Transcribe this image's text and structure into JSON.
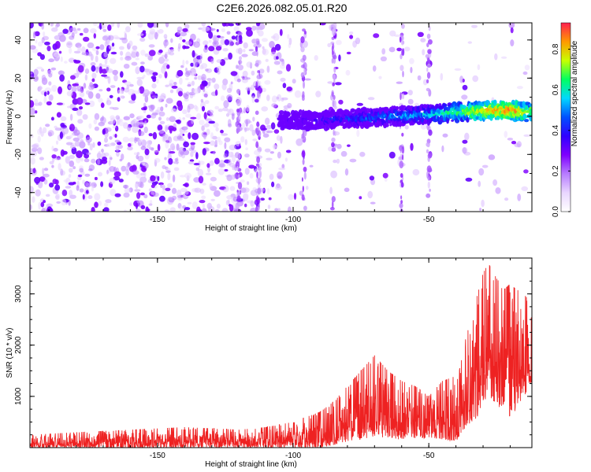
{
  "title": "C2E6.2026.082.05.01.R20",
  "colors": {
    "axis": "#000000",
    "snr_line": "#ee2222",
    "spectrogram_bg": "#ffffff",
    "colormap": [
      "#ffffff",
      "#e9d6ff",
      "#b77cff",
      "#7f00ff",
      "#3000ff",
      "#0050ff",
      "#00d8ff",
      "#00ff60",
      "#c8ff00",
      "#ff9900",
      "#ff1f4f"
    ]
  },
  "chart_data": [
    {
      "type": "heatmap",
      "xlabel": "Height of straight line (km)",
      "ylabel": "Frequency (Hz)",
      "xlim": [
        -197,
        -12
      ],
      "ylim": [
        -50,
        49
      ],
      "xticks": [
        -150,
        -100,
        -50
      ],
      "yticks": [
        -40,
        -20,
        0,
        20,
        40
      ],
      "grid": false,
      "description_of_content": [],
      "signal_ridge": {
        "x": [
          -105,
          -90,
          -75,
          -60,
          -50,
          -40,
          -30,
          -20,
          -12
        ],
        "frequency": [
          -2,
          -2,
          -1,
          0,
          1,
          2,
          3,
          3,
          2
        ],
        "peak_amplitude": [
          0.25,
          0.35,
          0.45,
          0.5,
          0.55,
          0.65,
          0.8,
          0.85,
          0.7
        ]
      },
      "colorbar": {
        "label": "Normalized spectral amplitude",
        "range": [
          0.0,
          0.93
        ],
        "ticks": [
          0.0,
          0.2,
          0.4,
          0.6,
          0.8
        ],
        "tick_labels": [
          "0.0",
          "0.2",
          "0.4",
          "0.6",
          "0.8"
        ]
      }
    },
    {
      "type": "line",
      "xlabel": "Height of straight line (km)",
      "ylabel": "SNR (10 * v/v)",
      "xlim": [
        -197,
        -12
      ],
      "ylim": [
        0,
        3700
      ],
      "xticks": [
        -150,
        -100,
        -50
      ],
      "yticks": [
        1000,
        2000,
        3000
      ],
      "grid": false,
      "series": [
        {
          "envelope_x": [
            -197,
            -180,
            -160,
            -140,
            -120,
            -110,
            -100,
            -95,
            -90,
            -85,
            -80,
            -75,
            -70,
            -65,
            -60,
            -55,
            -50,
            -45,
            -40,
            -38,
            -35,
            -32,
            -30,
            -28,
            -25,
            -22,
            -20,
            -18,
            -15,
            -12
          ],
          "envelope_low": [
            0,
            0,
            0,
            0,
            0,
            0,
            0,
            0,
            0,
            50,
            100,
            150,
            200,
            200,
            150,
            150,
            200,
            150,
            100,
            300,
            400,
            600,
            900,
            1000,
            800,
            700,
            600,
            700,
            1000,
            1200
          ],
          "envelope_high": [
            250,
            300,
            350,
            400,
            350,
            400,
            500,
            600,
            700,
            900,
            1200,
            1500,
            1800,
            1500,
            1300,
            1200,
            1000,
            1300,
            1400,
            1800,
            2400,
            3000,
            3400,
            3600,
            3300,
            3100,
            3200,
            3100,
            3000,
            2800
          ]
        }
      ]
    }
  ]
}
